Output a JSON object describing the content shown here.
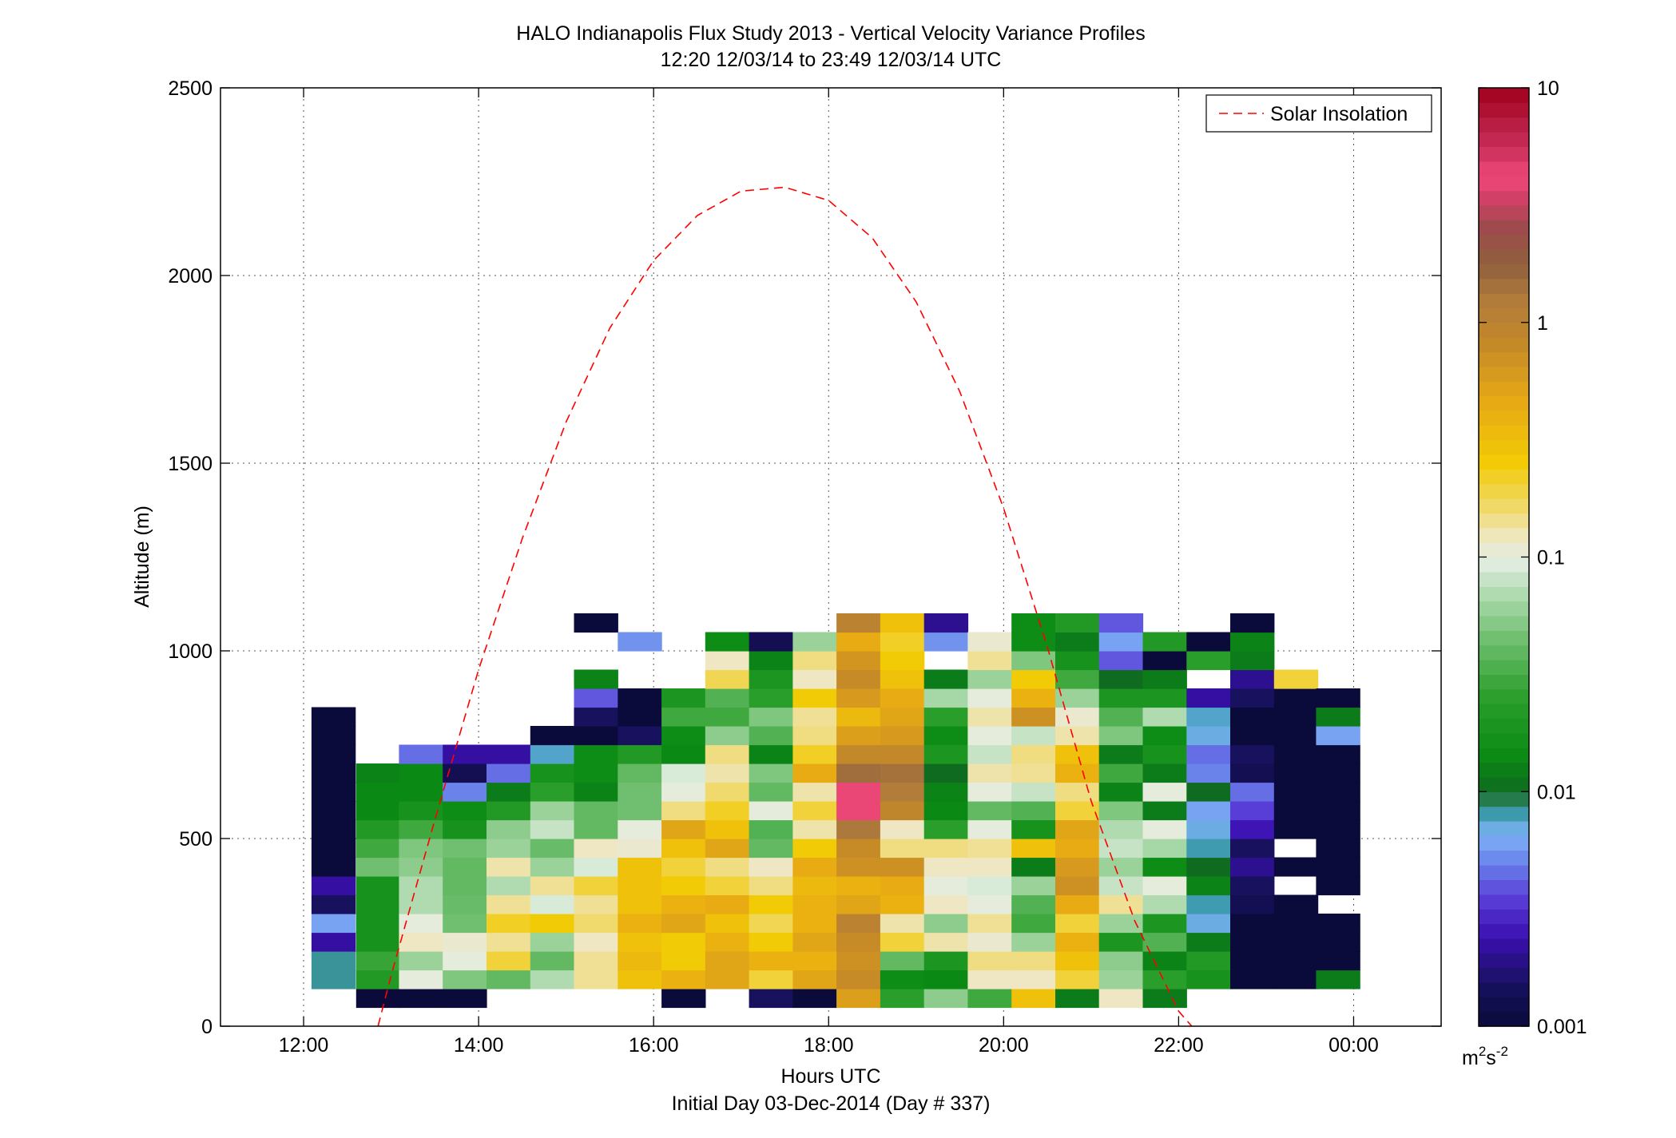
{
  "chart_data": {
    "type": "heatmap",
    "title": "HALO Indianapolis Flux Study 2013 - Vertical Velocity Variance Profiles",
    "subtitle": "12:20 12/03/14 to 23:49 12/03/14  UTC",
    "xlabel": "Hours UTC",
    "xlabel2": "Initial Day 03-Dec-2014 (Day # 337)",
    "ylabel": "Altitude (m)",
    "xlim": [
      11.05,
      25.0
    ],
    "ylim": [
      0,
      2500
    ],
    "x_ticks": [
      12,
      14,
      16,
      18,
      20,
      22,
      24
    ],
    "x_tick_labels": [
      "12:00",
      "14:00",
      "16:00",
      "18:00",
      "20:00",
      "22:00",
      "00:00"
    ],
    "y_ticks": [
      0,
      500,
      1000,
      1500,
      2000,
      2500
    ],
    "y_tick_labels": [
      "0",
      "500",
      "1000",
      "1500",
      "2000",
      "2500"
    ],
    "grid": true,
    "legend": {
      "placement": "top-right",
      "entries": [
        "Solar Insolation"
      ]
    },
    "colorbar": {
      "scale": "log",
      "range": [
        0.001,
        10
      ],
      "tick_values": [
        0.001,
        0.01,
        0.1,
        1,
        10
      ],
      "tick_labels": [
        "0.001",
        "0.01",
        "0.1",
        "1",
        "10"
      ],
      "units_base": "m",
      "units_sup1": "2",
      "units_mid": "s",
      "units_sup2": "-2"
    },
    "profile_times_h": [
      12.34,
      12.85,
      13.34,
      13.84,
      14.34,
      14.84,
      15.34,
      15.84,
      16.34,
      16.84,
      17.34,
      17.84,
      18.34,
      18.84,
      19.34,
      19.84,
      20.34,
      20.84,
      21.34,
      21.84,
      22.34,
      22.84,
      23.34,
      23.82
    ],
    "bin_width_h": 0.5,
    "altitude_bin_bottoms_m": [
      50,
      100,
      150,
      200,
      250,
      300,
      350,
      400,
      450,
      500,
      550,
      600,
      650,
      700,
      750,
      800,
      850,
      900,
      950,
      1000,
      1050
    ],
    "altitude_bin_height_m": 50,
    "variance_m2s2": [
      [
        null,
        0.0083,
        0.0083,
        0.0022,
        0.006,
        0.0015,
        0.0022,
        0.001,
        0.001,
        0.001,
        0.001,
        0.001,
        0.001,
        0.001,
        0.001,
        0.001,
        null,
        null,
        null,
        null,
        null
      ],
      [
        0.001,
        0.022,
        0.028,
        0.018,
        0.018,
        0.018,
        0.018,
        0.045,
        0.03,
        0.022,
        0.014,
        0.014,
        0.013,
        null,
        null,
        null,
        null,
        null,
        null,
        null,
        null
      ],
      [
        0.001,
        0.1,
        0.06,
        0.12,
        0.1,
        0.07,
        0.07,
        0.055,
        0.05,
        0.03,
        0.018,
        0.014,
        0.014,
        0.0045,
        null,
        null,
        null,
        null,
        null,
        null,
        null
      ],
      [
        0.001,
        0.05,
        0.1,
        0.11,
        0.045,
        0.042,
        0.04,
        0.04,
        0.045,
        0.018,
        0.015,
        0.005,
        0.0013,
        0.0022,
        null,
        null,
        null,
        null,
        null,
        null,
        null
      ],
      [
        null,
        0.04,
        0.2,
        0.14,
        0.22,
        0.14,
        0.07,
        0.13,
        0.06,
        0.055,
        0.022,
        0.012,
        0.0045,
        0.0022,
        null,
        null,
        null,
        null,
        null,
        null,
        null
      ],
      [
        null,
        0.07,
        0.04,
        0.06,
        0.25,
        0.09,
        0.14,
        0.06,
        0.042,
        0.08,
        0.06,
        0.025,
        0.018,
        0.0075,
        0.001,
        null,
        null,
        null,
        null,
        null,
        null
      ],
      [
        null,
        0.14,
        0.14,
        0.12,
        0.16,
        0.14,
        0.2,
        0.09,
        0.12,
        0.04,
        0.04,
        0.013,
        0.015,
        0.015,
        0.001,
        0.0015,
        0.004,
        0.013,
        null,
        null,
        0.001
      ],
      [
        null,
        0.3,
        0.35,
        0.3,
        0.4,
        0.3,
        0.3,
        0.3,
        0.11,
        0.1,
        0.045,
        0.045,
        0.04,
        0.022,
        0.0015,
        0.001,
        0.001,
        null,
        null,
        0.0055,
        null
      ],
      [
        0.001,
        0.4,
        0.25,
        0.25,
        0.5,
        0.4,
        0.25,
        0.2,
        0.3,
        0.5,
        0.15,
        0.1,
        0.09,
        0.014,
        0.015,
        0.03,
        0.02,
        null,
        null,
        null,
        null
      ],
      [
        null,
        0.5,
        0.5,
        0.4,
        0.3,
        0.45,
        0.2,
        0.15,
        0.5,
        0.3,
        0.22,
        0.16,
        0.13,
        0.15,
        0.055,
        0.03,
        0.035,
        0.18,
        0.12,
        0.015,
        null
      ],
      [
        0.0015,
        0.2,
        0.4,
        0.25,
        0.18,
        0.25,
        0.15,
        0.12,
        0.04,
        0.035,
        0.1,
        0.04,
        0.05,
        0.013,
        0.035,
        0.05,
        0.025,
        0.02,
        0.013,
        0.0013,
        null
      ],
      [
        0.001,
        0.5,
        0.4,
        0.5,
        0.4,
        0.4,
        0.35,
        0.45,
        0.25,
        0.13,
        0.2,
        0.13,
        0.45,
        0.22,
        0.15,
        0.14,
        0.25,
        0.12,
        0.15,
        0.06,
        null
      ],
      [
        0.55,
        0.8,
        0.7,
        0.8,
        1.0,
        0.5,
        0.4,
        0.7,
        0.8,
        1.3,
        4.0,
        4.0,
        1.5,
        0.85,
        0.55,
        0.35,
        0.6,
        0.8,
        0.65,
        0.45,
        1.0
      ],
      [
        0.025,
        0.015,
        0.04,
        0.2,
        0.13,
        0.4,
        0.45,
        0.7,
        0.15,
        0.12,
        0.9,
        1.2,
        1.4,
        0.85,
        0.6,
        0.5,
        0.45,
        0.3,
        0.25,
        0.22,
        0.3
      ],
      [
        0.055,
        0.014,
        0.02,
        0.13,
        0.055,
        0.12,
        0.1,
        0.12,
        0.15,
        0.025,
        0.014,
        0.013,
        0.01,
        0.02,
        0.015,
        0.025,
        0.065,
        0.012,
        null,
        0.0055,
        0.002
      ],
      [
        0.03,
        0.12,
        0.15,
        0.11,
        0.14,
        0.1,
        0.09,
        0.12,
        0.14,
        0.1,
        0.04,
        0.1,
        0.13,
        0.08,
        0.1,
        0.13,
        0.1,
        0.06,
        0.14,
        0.11,
        null
      ],
      [
        0.3,
        0.12,
        0.15,
        0.06,
        0.03,
        0.035,
        0.06,
        0.012,
        0.3,
        0.018,
        0.035,
        0.08,
        0.14,
        0.15,
        0.08,
        0.7,
        0.4,
        0.25,
        0.05,
        0.015,
        0.015
      ],
      [
        0.012,
        0.2,
        0.3,
        0.4,
        0.2,
        0.45,
        0.7,
        0.6,
        0.45,
        0.5,
        0.2,
        0.15,
        0.4,
        0.3,
        0.13,
        0.11,
        0.06,
        0.03,
        0.018,
        0.012,
        0.022
      ],
      [
        0.12,
        0.06,
        0.055,
        0.02,
        0.06,
        0.14,
        0.08,
        0.06,
        0.08,
        0.07,
        0.05,
        0.013,
        0.03,
        0.012,
        0.05,
        0.035,
        0.02,
        0.01,
        0.004,
        0.006,
        0.004
      ],
      [
        0.012,
        0.025,
        0.013,
        0.035,
        0.02,
        0.07,
        0.1,
        0.015,
        0.065,
        0.1,
        0.012,
        0.1,
        0.012,
        0.018,
        0.015,
        0.07,
        0.02,
        0.012,
        0.001,
        0.022,
        null
      ],
      [
        null,
        0.018,
        0.022,
        0.012,
        0.007,
        0.008,
        0.013,
        0.01,
        0.008,
        0.007,
        0.006,
        0.01,
        0.005,
        0.0045,
        0.007,
        0.0075,
        0.0022,
        null,
        0.025,
        0.001,
        null
      ],
      [
        null,
        0.001,
        0.001,
        0.001,
        0.001,
        0.0013,
        0.0015,
        0.002,
        0.0015,
        0.0025,
        0.0035,
        0.0045,
        0.0013,
        0.0015,
        0.001,
        0.001,
        0.0015,
        0.002,
        0.012,
        0.013,
        0.001
      ],
      [
        null,
        0.001,
        0.001,
        0.001,
        0.001,
        0.001,
        null,
        0.001,
        null,
        0.001,
        0.001,
        0.001,
        0.001,
        0.001,
        0.001,
        0.001,
        0.001,
        0.2,
        null,
        null,
        null
      ],
      [
        null,
        0.012,
        0.001,
        0.001,
        0.001,
        null,
        0.001,
        0.001,
        0.001,
        0.001,
        0.001,
        0.001,
        0.001,
        0.001,
        0.006,
        0.012,
        0.001,
        null,
        null,
        null,
        null
      ]
    ],
    "solar_insolation": {
      "name": "Solar Insolation",
      "color": "#ff0000",
      "style": "dashed",
      "x": [
        12.85,
        13.0,
        13.5,
        14.0,
        14.5,
        15.0,
        15.5,
        16.0,
        16.5,
        17.0,
        17.5,
        18.0,
        18.5,
        19.0,
        19.5,
        20.0,
        20.5,
        21.0,
        21.5,
        22.0,
        22.15
      ],
      "y": [
        0,
        135,
        550,
        950,
        1300,
        1610,
        1860,
        2040,
        2160,
        2225,
        2235,
        2200,
        2100,
        1930,
        1690,
        1380,
        1010,
        600,
        280,
        40,
        0
      ]
    }
  }
}
